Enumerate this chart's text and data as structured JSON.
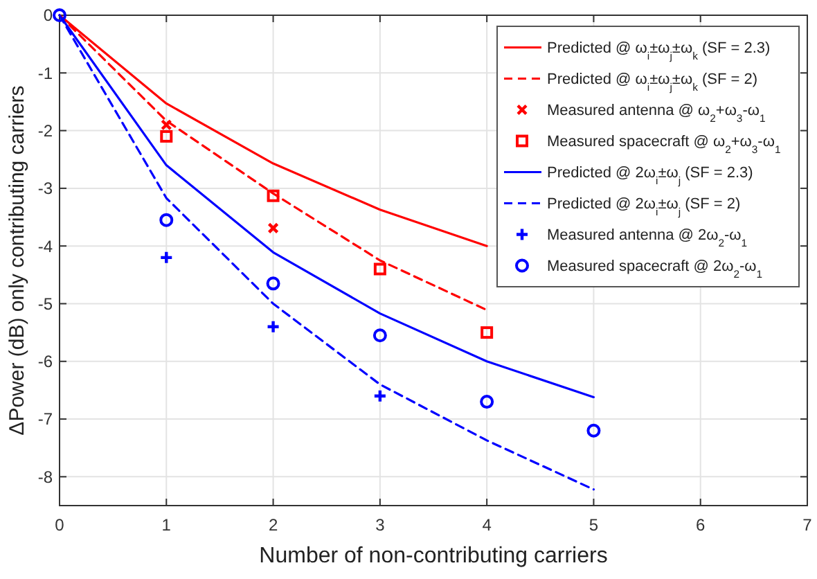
{
  "chart_data": {
    "type": "line",
    "xlabel": "Number of non-contributing carriers",
    "ylabel": "ΔPower (dB) only contributing carriers",
    "xlim": [
      0,
      7
    ],
    "ylim": [
      -8.5,
      0
    ],
    "xticks": [
      0,
      1,
      2,
      3,
      4,
      5,
      6,
      7
    ],
    "yticks": [
      0,
      -1,
      -2,
      -3,
      -4,
      -5,
      -6,
      -7,
      -8
    ],
    "grid": true,
    "legend": "top right",
    "series": [
      {
        "name": "Predicted @ ω$_{i}$±ω$_{j}$±ω$_{k}$ (SF = 2.3)",
        "line_style": "solid",
        "color": "#ff0000",
        "x": [
          0,
          1,
          2,
          3,
          4
        ],
        "values": [
          0,
          -1.53,
          -2.57,
          -3.37,
          -4.0
        ]
      },
      {
        "name": "Predicted @ ω$_{i}$±ω$_{j}$±ω$_{k}$ (SF = 2)",
        "line_style": "dashed",
        "color": "#ff0000",
        "x": [
          0,
          1,
          2,
          3,
          4
        ],
        "values": [
          0,
          -1.83,
          -3.09,
          -4.25,
          -5.11
        ]
      },
      {
        "name": "Measured antenna @ ω$_{2}$+ω$_{3}$-ω$_{1}$",
        "type": "scatter",
        "marker": "cross",
        "color": "#ff0000",
        "x": [
          1,
          2
        ],
        "values": [
          -1.9,
          -3.69
        ]
      },
      {
        "name": "Measured spacecraft @ ω$_{2}$+ω$_{3}$-ω$_{1}$",
        "type": "scatter",
        "marker": "square",
        "color": "#ff0000",
        "x": [
          1,
          2,
          3,
          4
        ],
        "values": [
          -2.1,
          -3.13,
          -4.4,
          -5.5
        ]
      },
      {
        "name": "Predicted @ 2ω$_{i}$±ω$_{j}$ (SF = 2.3)",
        "line_style": "solid",
        "color": "#0000ff",
        "x": [
          0,
          1,
          2,
          3,
          4,
          5
        ],
        "values": [
          0,
          -2.6,
          -4.11,
          -5.17,
          -6.0,
          -6.62
        ]
      },
      {
        "name": "Predicted @ 2ω$_{i}$±ω$_{j}$ (SF = 2)",
        "line_style": "dashed",
        "color": "#0000ff",
        "x": [
          0,
          1,
          2,
          3,
          4,
          5
        ],
        "values": [
          0,
          -3.17,
          -5.0,
          -6.4,
          -7.37,
          -8.22
        ]
      },
      {
        "name": "Measured antenna @ 2ω$_{2}$-ω$_{1}$",
        "type": "scatter",
        "marker": "plus",
        "color": "#0000ff",
        "x": [
          1,
          2,
          3
        ],
        "values": [
          -4.2,
          -5.4,
          -6.6
        ]
      },
      {
        "name": "Measured spacecraft @ 2ω$_{2}$-ω$_{1}$",
        "type": "scatter",
        "marker": "circle",
        "color": "#0000ff",
        "x": [
          0,
          1,
          2,
          3,
          4,
          5
        ],
        "values": [
          0,
          -3.55,
          -4.65,
          -5.55,
          -6.7,
          -7.2
        ]
      }
    ]
  }
}
